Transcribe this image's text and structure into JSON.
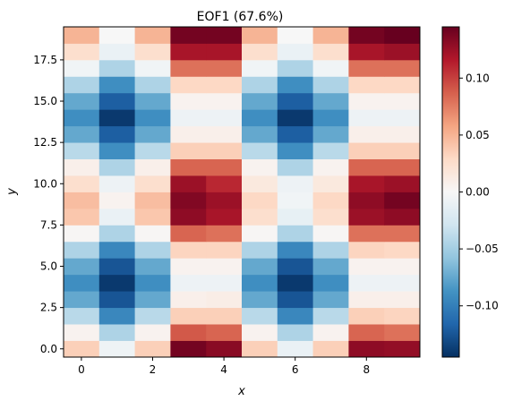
{
  "chart_data": {
    "type": "heatmap",
    "title": "EOF1 (67.6%)",
    "xlabel": "x",
    "ylabel": "y",
    "x": [
      0,
      1,
      2,
      3,
      4,
      5,
      6,
      7,
      8,
      9
    ],
    "y": [
      0,
      1,
      2,
      3,
      4,
      5,
      6,
      7,
      8,
      9,
      10,
      11,
      12,
      13,
      14,
      15,
      16,
      17,
      18,
      19
    ],
    "xlim": [
      -0.5,
      9.5
    ],
    "ylim": [
      -0.5,
      19.5
    ],
    "xticks": [
      {
        "value": 0,
        "label": "0"
      },
      {
        "value": 2,
        "label": "2"
      },
      {
        "value": 4,
        "label": "4"
      },
      {
        "value": 6,
        "label": "6"
      },
      {
        "value": 8,
        "label": "8"
      }
    ],
    "yticks": [
      {
        "value": 0,
        "label": "0.0"
      },
      {
        "value": 2.5,
        "label": "2.5"
      },
      {
        "value": 5,
        "label": "5.0"
      },
      {
        "value": 7.5,
        "label": "7.5"
      },
      {
        "value": 10,
        "label": "10.0"
      },
      {
        "value": 12.5,
        "label": "12.5"
      },
      {
        "value": 15,
        "label": "15.0"
      },
      {
        "value": 17.5,
        "label": "17.5"
      }
    ],
    "z": [
      [
        0.035,
        -0.007,
        0.035,
        0.14,
        0.132,
        0.035,
        -0.01,
        0.035,
        0.13,
        0.128
      ],
      [
        0.005,
        -0.045,
        0.005,
        0.09,
        0.085,
        0.005,
        -0.045,
        0.005,
        0.085,
        0.08
      ],
      [
        -0.04,
        -0.095,
        -0.04,
        0.035,
        0.035,
        -0.04,
        -0.095,
        -0.04,
        0.035,
        0.032
      ],
      [
        -0.075,
        -0.125,
        -0.075,
        0.008,
        0.01,
        -0.075,
        -0.125,
        -0.075,
        0.008,
        0.008
      ],
      [
        -0.09,
        -0.14,
        -0.09,
        -0.008,
        -0.008,
        -0.09,
        -0.14,
        -0.09,
        -0.008,
        -0.008
      ],
      [
        -0.075,
        -0.125,
        -0.075,
        0.005,
        0.005,
        -0.075,
        -0.125,
        -0.075,
        0.005,
        0.005
      ],
      [
        -0.045,
        -0.095,
        -0.045,
        0.032,
        0.032,
        -0.045,
        -0.095,
        -0.045,
        0.032,
        0.03
      ],
      [
        0.002,
        -0.045,
        0.002,
        0.085,
        0.08,
        0.002,
        -0.045,
        0.002,
        0.08,
        0.08
      ],
      [
        0.04,
        -0.01,
        0.04,
        0.13,
        0.12,
        0.025,
        -0.012,
        0.025,
        0.125,
        0.13
      ],
      [
        0.045,
        0.005,
        0.045,
        0.135,
        0.125,
        0.03,
        -0.005,
        0.03,
        0.13,
        0.14
      ],
      [
        0.025,
        -0.008,
        0.025,
        0.125,
        0.11,
        0.015,
        -0.008,
        0.015,
        0.12,
        0.125
      ],
      [
        0.008,
        -0.045,
        0.008,
        0.085,
        0.085,
        0.005,
        -0.045,
        0.005,
        0.085,
        0.085
      ],
      [
        -0.04,
        -0.09,
        -0.04,
        0.035,
        0.035,
        -0.04,
        -0.09,
        -0.04,
        0.035,
        0.035
      ],
      [
        -0.075,
        -0.12,
        -0.075,
        0.008,
        0.008,
        -0.075,
        -0.12,
        -0.075,
        0.008,
        0.008
      ],
      [
        -0.09,
        -0.14,
        -0.09,
        -0.008,
        -0.008,
        -0.09,
        -0.14,
        -0.09,
        -0.008,
        -0.008
      ],
      [
        -0.075,
        -0.12,
        -0.075,
        0.005,
        0.005,
        -0.075,
        -0.12,
        -0.075,
        0.005,
        0.005
      ],
      [
        -0.045,
        -0.09,
        -0.045,
        0.03,
        0.03,
        -0.045,
        -0.09,
        -0.045,
        0.03,
        0.03
      ],
      [
        -0.005,
        -0.045,
        -0.005,
        0.08,
        0.08,
        -0.005,
        -0.045,
        -0.005,
        0.08,
        0.08
      ],
      [
        0.025,
        -0.01,
        0.025,
        0.12,
        0.12,
        0.025,
        -0.01,
        0.025,
        0.12,
        0.125
      ],
      [
        0.05,
        0.0,
        0.05,
        0.14,
        0.14,
        0.05,
        0.0,
        0.05,
        0.14,
        0.145
      ]
    ],
    "vmin": -0.145,
    "vmax": 0.145,
    "colormap": "RdBu_r",
    "colormap_stops": [
      "#053061",
      "#2166ac",
      "#4393c3",
      "#92c5de",
      "#d1e5f0",
      "#f7f7f7",
      "#fddbc7",
      "#f4a582",
      "#d6604d",
      "#b2182b",
      "#67001f"
    ],
    "colorbar": {
      "ticks": [
        {
          "value": -0.1,
          "label": "−0.10"
        },
        {
          "value": -0.05,
          "label": "−0.05"
        },
        {
          "value": 0.0,
          "label": "0.00"
        },
        {
          "value": 0.05,
          "label": "0.05"
        },
        {
          "value": 0.1,
          "label": "0.10"
        }
      ]
    },
    "grid": false
  }
}
